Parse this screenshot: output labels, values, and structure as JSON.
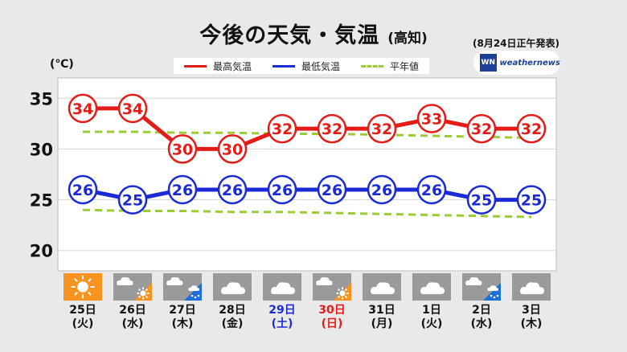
{
  "header": {
    "title": "今後の天気・気温",
    "location": "(高知)",
    "issued": "(8月24日正午発表)",
    "unit": "(℃)",
    "logo_mark": "WN",
    "logo_name": "weathernews"
  },
  "legend": [
    {
      "label": "最高気温",
      "color": "#e41b17",
      "style": "solid"
    },
    {
      "label": "最低気温",
      "color": "#1a2bd6",
      "style": "solid"
    },
    {
      "label": "平年値",
      "color": "#9acd32",
      "style": "dashed"
    }
  ],
  "chart_data": {
    "type": "line",
    "categories": [
      "25日",
      "26日",
      "27日",
      "28日",
      "29日",
      "30日",
      "31日",
      "1日",
      "2日",
      "3日"
    ],
    "ylim": [
      18,
      37
    ],
    "yticks": [
      20,
      25,
      30,
      35
    ],
    "grid": true,
    "legend_position": "top",
    "series": [
      {
        "name": "最高気温",
        "color": "#e41b17",
        "values": [
          34,
          34,
          30,
          30,
          32,
          32,
          32,
          33,
          32,
          32
        ]
      },
      {
        "name": "最低気温",
        "color": "#1a2bd6",
        "values": [
          26,
          25,
          26,
          26,
          26,
          26,
          26,
          26,
          25,
          25
        ]
      },
      {
        "name": "平年値",
        "color": "#9acd32",
        "dashed": true,
        "values": [
          31.7,
          31.7,
          31.6,
          31.6,
          31.5,
          31.5,
          31.4,
          31.3,
          31.2,
          31.1
        ]
      },
      {
        "name": "平年値",
        "color": "#9acd32",
        "dashed": true,
        "values": [
          24.0,
          23.9,
          23.9,
          23.8,
          23.8,
          23.7,
          23.6,
          23.5,
          23.4,
          23.3
        ]
      }
    ]
  },
  "days": [
    {
      "date": "25日",
      "weekday": "(火)",
      "color": "#111111",
      "icon": "sun-icon"
    },
    {
      "date": "26日",
      "weekday": "(水)",
      "color": "#111111",
      "icon": "cloud-then-sun-icon"
    },
    {
      "date": "27日",
      "weekday": "(木)",
      "color": "#111111",
      "icon": "cloud-then-rain-icon"
    },
    {
      "date": "28日",
      "weekday": "(金)",
      "color": "#111111",
      "icon": "cloud-icon"
    },
    {
      "date": "29日",
      "weekday": "(土)",
      "color": "#1a2bd6",
      "icon": "cloud-icon"
    },
    {
      "date": "30日",
      "weekday": "(日)",
      "color": "#e41b17",
      "icon": "cloud-then-sun-icon"
    },
    {
      "date": "31日",
      "weekday": "(月)",
      "color": "#111111",
      "icon": "cloud-icon"
    },
    {
      "date": "1日",
      "weekday": "(火)",
      "color": "#111111",
      "icon": "cloud-icon"
    },
    {
      "date": "2日",
      "weekday": "(水)",
      "color": "#111111",
      "icon": "cloud-then-rain-icon"
    },
    {
      "date": "3日",
      "weekday": "(木)",
      "color": "#111111",
      "icon": "cloud-icon"
    }
  ]
}
